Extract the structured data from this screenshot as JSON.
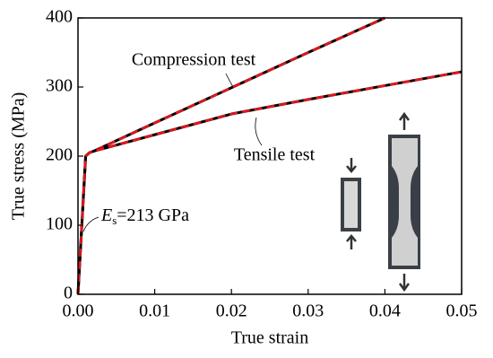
{
  "chart_data": {
    "type": "line",
    "x_label": "True strain",
    "y_label": "True stress (MPa)",
    "x": [
      0,
      0.001,
      0.0015,
      0.002,
      0.01,
      0.02,
      0.03,
      0.04,
      0.05
    ],
    "series": [
      {
        "name": "Compression test",
        "color": "#000000",
        "dashed": false,
        "values": [
          0,
          200,
          205,
          207,
          248,
          299,
          350,
          400,
          null
        ]
      },
      {
        "color": "#e8141c",
        "dashed": true,
        "values": [
          0,
          200,
          205,
          207,
          248,
          299,
          350,
          400,
          null
        ]
      },
      {
        "name": "Tensile test",
        "color": "#000000",
        "dashed": false,
        "values": [
          0,
          200,
          205,
          207,
          231,
          261,
          282,
          302,
          322
        ]
      },
      {
        "color": "#e8141c",
        "dashed": true,
        "values": [
          0,
          200,
          205,
          207,
          231,
          261,
          282,
          302,
          322
        ]
      }
    ],
    "annotation": {
      "symbol": "E",
      "subscript": "s",
      "text": "=213 GPa"
    },
    "xlim": [
      0,
      0.05
    ],
    "ylim": [
      0,
      400
    ],
    "xticks": [
      {
        "value": 0,
        "label": "0.00"
      },
      0.01,
      0.02,
      0.03,
      0.04,
      0.05
    ],
    "yticks": [
      0,
      100,
      200,
      300,
      400
    ]
  }
}
